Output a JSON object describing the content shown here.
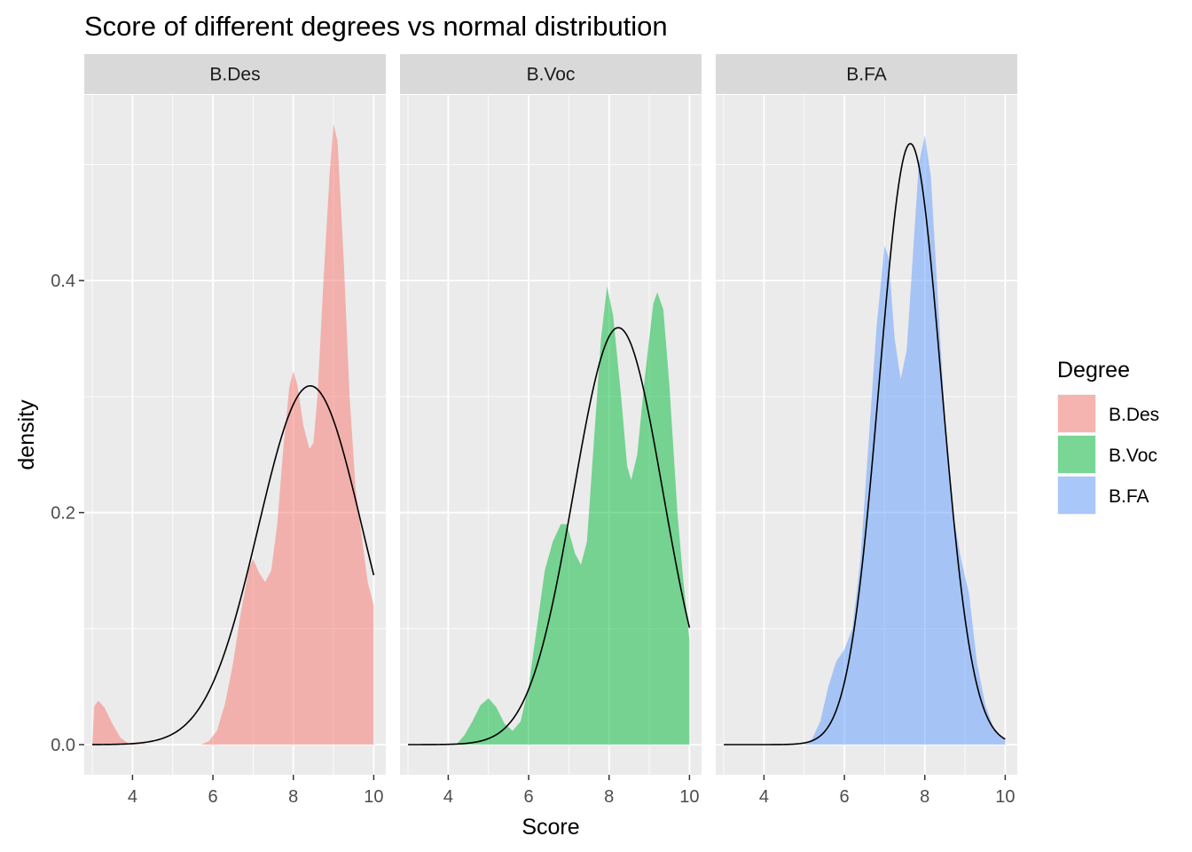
{
  "chart_data": {
    "type": "area",
    "title": "Score of different degrees vs normal distribution",
    "xlabel": "Score",
    "ylabel": "density",
    "xlim": [
      2.8,
      10.3
    ],
    "ylim": [
      -0.026,
      0.56
    ],
    "x_ticks": [
      4,
      6,
      8,
      10
    ],
    "y_ticks": [
      0.0,
      0.2,
      0.4
    ],
    "y_tick_labels": [
      "0.0",
      "0.2",
      "0.4"
    ],
    "grid": true,
    "legend": {
      "title": "Degree",
      "placement": "right"
    },
    "panels": [
      {
        "strip": "B.Des",
        "fill": "#F8766D",
        "density": [
          [
            3,
            0.0
          ],
          [
            3.05,
            0.033
          ],
          [
            3.15,
            0.038
          ],
          [
            3.3,
            0.032
          ],
          [
            3.5,
            0.018
          ],
          [
            3.7,
            0.006
          ],
          [
            3.9,
            0.001
          ],
          [
            4.5,
            0.0
          ],
          [
            5.7,
            0.0
          ],
          [
            5.9,
            0.003
          ],
          [
            6.1,
            0.012
          ],
          [
            6.3,
            0.035
          ],
          [
            6.5,
            0.07
          ],
          [
            6.7,
            0.115
          ],
          [
            6.9,
            0.152
          ],
          [
            7.0,
            0.16
          ],
          [
            7.15,
            0.148
          ],
          [
            7.3,
            0.14
          ],
          [
            7.45,
            0.15
          ],
          [
            7.6,
            0.19
          ],
          [
            7.75,
            0.255
          ],
          [
            7.9,
            0.308
          ],
          [
            8.0,
            0.322
          ],
          [
            8.1,
            0.31
          ],
          [
            8.25,
            0.275
          ],
          [
            8.4,
            0.255
          ],
          [
            8.5,
            0.26
          ],
          [
            8.6,
            0.3
          ],
          [
            8.75,
            0.4
          ],
          [
            8.9,
            0.49
          ],
          [
            9.0,
            0.535
          ],
          [
            9.1,
            0.52
          ],
          [
            9.25,
            0.42
          ],
          [
            9.4,
            0.3
          ],
          [
            9.55,
            0.22
          ],
          [
            9.7,
            0.18
          ],
          [
            9.85,
            0.14
          ],
          [
            10.0,
            0.12
          ],
          [
            10.0,
            0.0
          ]
        ],
        "normal": {
          "mean": 8.42,
          "sd": 1.29
        }
      },
      {
        "strip": "B.Voc",
        "fill": "#00BA38",
        "density": [
          [
            4.2,
            0.0
          ],
          [
            4.4,
            0.008
          ],
          [
            4.6,
            0.02
          ],
          [
            4.8,
            0.034
          ],
          [
            5.0,
            0.04
          ],
          [
            5.2,
            0.032
          ],
          [
            5.4,
            0.018
          ],
          [
            5.6,
            0.012
          ],
          [
            5.8,
            0.02
          ],
          [
            6.0,
            0.05
          ],
          [
            6.2,
            0.1
          ],
          [
            6.4,
            0.15
          ],
          [
            6.6,
            0.175
          ],
          [
            6.8,
            0.19
          ],
          [
            6.95,
            0.19
          ],
          [
            7.15,
            0.165
          ],
          [
            7.3,
            0.155
          ],
          [
            7.45,
            0.175
          ],
          [
            7.6,
            0.25
          ],
          [
            7.8,
            0.35
          ],
          [
            7.95,
            0.395
          ],
          [
            8.1,
            0.37
          ],
          [
            8.3,
            0.3
          ],
          [
            8.45,
            0.24
          ],
          [
            8.55,
            0.228
          ],
          [
            8.7,
            0.25
          ],
          [
            8.9,
            0.32
          ],
          [
            9.1,
            0.38
          ],
          [
            9.2,
            0.39
          ],
          [
            9.35,
            0.375
          ],
          [
            9.5,
            0.31
          ],
          [
            9.7,
            0.2
          ],
          [
            9.85,
            0.14
          ],
          [
            10.0,
            0.09
          ],
          [
            10.0,
            0.0
          ]
        ],
        "normal": {
          "mean": 8.23,
          "sd": 1.11
        }
      },
      {
        "strip": "B.FA",
        "fill": "#619CFF",
        "density": [
          [
            5.0,
            0.0
          ],
          [
            5.2,
            0.005
          ],
          [
            5.4,
            0.02
          ],
          [
            5.6,
            0.05
          ],
          [
            5.8,
            0.072
          ],
          [
            6.0,
            0.082
          ],
          [
            6.2,
            0.1
          ],
          [
            6.4,
            0.16
          ],
          [
            6.6,
            0.26
          ],
          [
            6.8,
            0.36
          ],
          [
            7.0,
            0.43
          ],
          [
            7.1,
            0.42
          ],
          [
            7.25,
            0.35
          ],
          [
            7.4,
            0.315
          ],
          [
            7.55,
            0.34
          ],
          [
            7.7,
            0.42
          ],
          [
            7.85,
            0.5
          ],
          [
            8.0,
            0.525
          ],
          [
            8.15,
            0.49
          ],
          [
            8.3,
            0.4
          ],
          [
            8.5,
            0.28
          ],
          [
            8.7,
            0.2
          ],
          [
            8.9,
            0.16
          ],
          [
            9.1,
            0.13
          ],
          [
            9.3,
            0.07
          ],
          [
            9.5,
            0.035
          ],
          [
            9.7,
            0.015
          ],
          [
            9.9,
            0.006
          ],
          [
            10.0,
            0.004
          ],
          [
            10.0,
            0.0
          ]
        ],
        "normal": {
          "mean": 7.64,
          "sd": 0.77
        }
      }
    ]
  }
}
